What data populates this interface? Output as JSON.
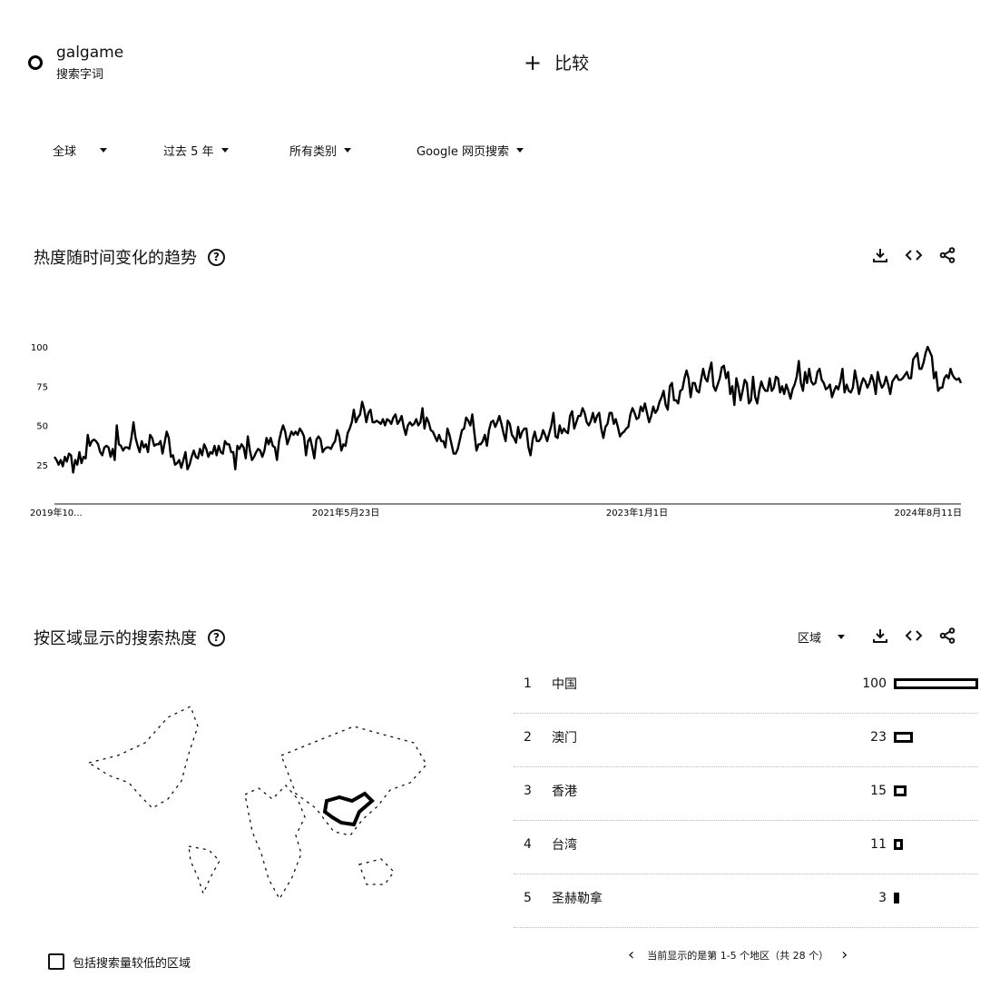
{
  "search_term": {
    "name": "galgame",
    "type": "搜索字词"
  },
  "compare_label": "比较",
  "filters": [
    {
      "label": "全球"
    },
    {
      "label": "过去 5 年"
    },
    {
      "label": "所有类别"
    },
    {
      "label": "Google 网页搜索"
    }
  ],
  "interest_over_time": {
    "title": "热度随时间变化的趋势",
    "help_glyph": "?"
  },
  "region_section": {
    "title": "按区域显示的搜索热度",
    "help_glyph": "?",
    "dropdown_label": "区域"
  },
  "regions": [
    {
      "rank": "1",
      "name": "中国",
      "value": 100
    },
    {
      "rank": "2",
      "name": "澳门",
      "value": 23
    },
    {
      "rank": "3",
      "name": "香港",
      "value": 15
    },
    {
      "rank": "4",
      "name": "台湾",
      "value": 11
    },
    {
      "rank": "5",
      "name": "圣赫勒拿",
      "value": 3
    }
  ],
  "low_volume_label": "包括搜索量较低的区域",
  "pagination_text": "当前显示的是第 1-5 个地区（共 28 个）",
  "chart_data": {
    "type": "line",
    "title": "",
    "xlabel": "",
    "ylabel": "",
    "ylim": [
      0,
      100
    ],
    "y_ticks": [
      "25",
      "50",
      "75",
      "100"
    ],
    "x_tick_labels": [
      "2019年10...",
      "2021年5月23日",
      "2023年1月1日",
      "2024年8月11日"
    ],
    "grid": false,
    "series": [
      {
        "values": [
          30,
          28,
          25,
          28,
          24,
          30,
          27,
          32,
          31,
          20,
          28,
          25,
          33,
          26,
          30,
          29,
          44,
          37,
          40,
          41,
          40,
          38,
          33,
          31,
          36,
          37,
          36,
          30,
          35,
          28,
          50,
          38,
          37,
          34,
          36,
          36,
          35,
          42,
          52,
          42,
          37,
          33,
          40,
          36,
          38,
          33,
          44,
          42,
          37,
          38,
          38,
          40,
          32,
          39,
          46,
          42,
          30,
          31,
          25,
          26,
          28,
          23,
          28,
          33,
          22,
          25,
          30,
          34,
          30,
          29,
          35,
          31,
          38,
          35,
          30,
          33,
          32,
          37,
          31,
          37,
          33,
          32,
          40,
          38,
          38,
          33,
          33,
          22,
          37,
          35,
          38,
          36,
          29,
          43,
          34,
          28,
          30,
          33,
          35,
          34,
          30,
          34,
          42,
          38,
          42,
          37,
          36,
          28,
          40,
          46,
          50,
          46,
          38,
          42,
          46,
          44,
          46,
          44,
          48,
          46,
          43,
          31,
          40,
          42,
          36,
          29,
          41,
          43,
          41,
          33,
          35,
          36,
          36,
          35,
          38,
          40,
          47,
          43,
          34,
          38,
          37,
          45,
          48,
          52,
          60,
          52,
          55,
          57,
          65,
          60,
          52,
          58,
          60,
          52,
          52,
          53,
          52,
          51,
          54,
          50,
          54,
          53,
          51,
          55,
          57,
          51,
          53,
          56,
          49,
          44,
          50,
          52,
          50,
          51,
          54,
          50,
          52,
          61,
          48,
          55,
          52,
          47,
          46,
          43,
          40,
          44,
          40,
          40,
          36,
          48,
          44,
          38,
          32,
          32,
          35,
          41,
          47,
          48,
          55,
          53,
          50,
          57,
          45,
          34,
          38,
          38,
          40,
          44,
          37,
          47,
          52,
          53,
          49,
          52,
          56,
          51,
          45,
          40,
          53,
          51,
          44,
          42,
          39,
          49,
          42,
          46,
          48,
          48,
          36,
          31,
          41,
          46,
          40,
          40,
          42,
          47,
          44,
          40,
          45,
          50,
          58,
          43,
          42,
          50,
          45,
          48,
          46,
          45,
          56,
          59,
          48,
          52,
          56,
          56,
          61,
          58,
          52,
          50,
          53,
          58,
          52,
          56,
          58,
          48,
          42,
          49,
          51,
          58,
          58,
          51,
          54,
          49,
          43,
          45,
          46,
          48,
          49,
          57,
          61,
          58,
          54,
          55,
          62,
          59,
          64,
          58,
          52,
          56,
          62,
          58,
          60,
          65,
          68,
          72,
          63,
          60,
          75,
          77,
          66,
          66,
          64,
          72,
          73,
          80,
          85,
          80,
          68,
          77,
          77,
          72,
          71,
          79,
          86,
          80,
          78,
          85,
          90,
          75,
          72,
          76,
          80,
          87,
          88,
          80,
          84,
          70,
          75,
          63,
          80,
          74,
          66,
          72,
          79,
          77,
          64,
          66,
          81,
          68,
          64,
          72,
          78,
          74,
          72,
          72,
          80,
          72,
          74,
          81,
          80,
          71,
          75,
          70,
          76,
          72,
          67,
          73,
          76,
          81,
          91,
          77,
          72,
          84,
          77,
          86,
          78,
          76,
          77,
          84,
          86,
          79,
          77,
          73,
          74,
          76,
          68,
          72,
          75,
          73,
          78,
          86,
          71,
          76,
          72,
          71,
          74,
          85,
          78,
          70,
          76,
          80,
          78,
          74,
          77,
          82,
          78,
          70,
          84,
          78,
          74,
          76,
          81,
          76,
          70,
          78,
          80,
          82,
          79,
          79,
          80,
          82,
          84,
          80,
          80,
          92,
          94,
          96,
          86,
          86,
          90,
          96,
          100,
          97,
          94,
          80,
          84,
          72,
          74,
          74,
          80,
          82,
          80,
          86,
          82,
          80,
          79,
          80,
          77
        ]
      }
    ]
  },
  "map": {
    "highlight_color": "#000000",
    "highlighted_region": "中国"
  },
  "icons": {
    "download": "download-icon",
    "embed": "embed-code-icon",
    "share": "share-icon",
    "help": "help-icon",
    "prev": "chevron-left-icon",
    "next": "chevron-right-icon"
  }
}
